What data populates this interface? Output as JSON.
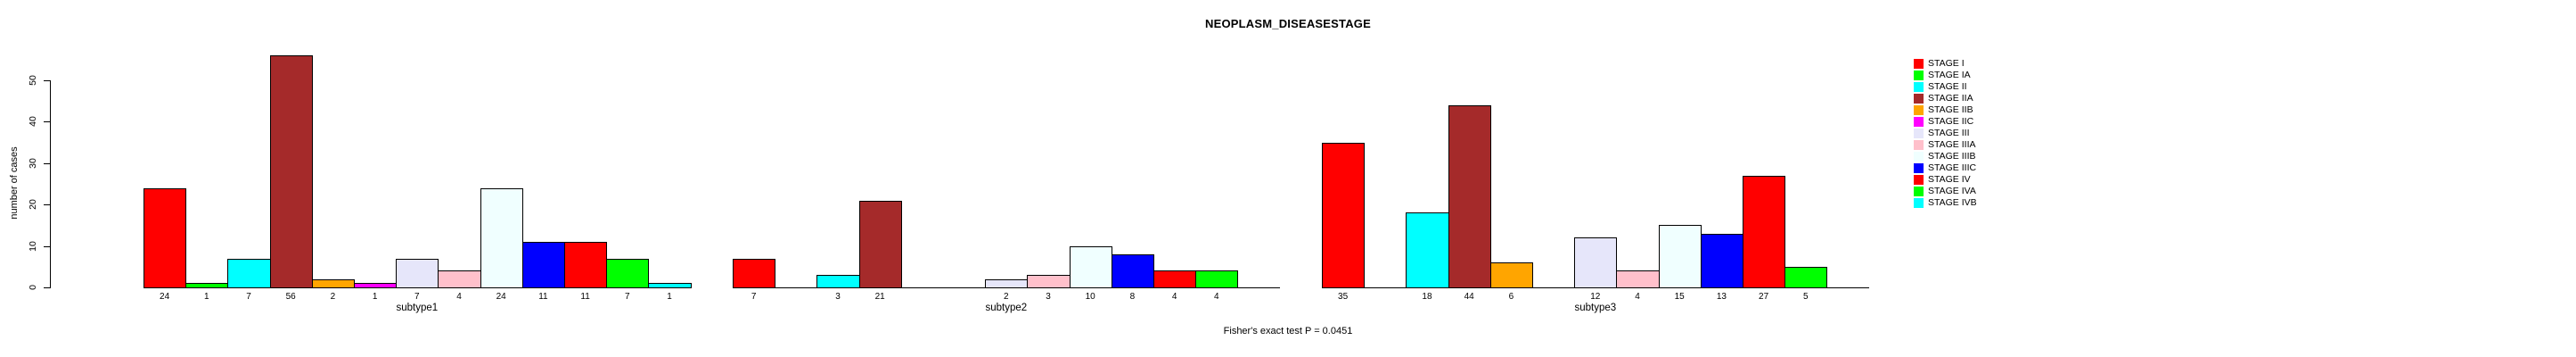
{
  "page": {
    "background_color": "#FFFFFF",
    "axis_color": "#000000",
    "bar_border_color": "#000000"
  },
  "chart_data": {
    "type": "bar",
    "title": "NEOPLASM_DISEASESTAGE",
    "xlabel": "",
    "ylabel": "number of cases",
    "ylim": [
      0,
      50
    ],
    "yticks": [
      0,
      10,
      20,
      30,
      40,
      50
    ],
    "grid": false,
    "legend_position": "top-right",
    "categories": [
      "STAGE I",
      "STAGE IA",
      "STAGE II",
      "STAGE IIA",
      "STAGE IIB",
      "STAGE IIC",
      "STAGE III",
      "STAGE IIIA",
      "STAGE IIIB",
      "STAGE IIIC",
      "STAGE IV",
      "STAGE IVA",
      "STAGE IVB"
    ],
    "colors": [
      "#FF0000",
      "#00FF00",
      "#00FFFF",
      "#A52A2A",
      "#FFA500",
      "#FF00FF",
      "#E6E6FA",
      "#FFC0CB",
      "#F0FFFF",
      "#0000FF",
      "#FF0000",
      "#00FF00",
      "#00FFFF"
    ],
    "groups": [
      {
        "label": "subtype1",
        "values": [
          24,
          1,
          7,
          56,
          2,
          1,
          7,
          4,
          24,
          11,
          11,
          7,
          1
        ]
      },
      {
        "label": "subtype2",
        "values": [
          7,
          0,
          3,
          21,
          0,
          0,
          2,
          3,
          10,
          8,
          4,
          4,
          0
        ]
      },
      {
        "label": "subtype3",
        "values": [
          35,
          0,
          18,
          44,
          6,
          0,
          12,
          4,
          15,
          13,
          27,
          5,
          0
        ]
      }
    ],
    "annotation": "Fisher's exact test P = 0.0451"
  }
}
